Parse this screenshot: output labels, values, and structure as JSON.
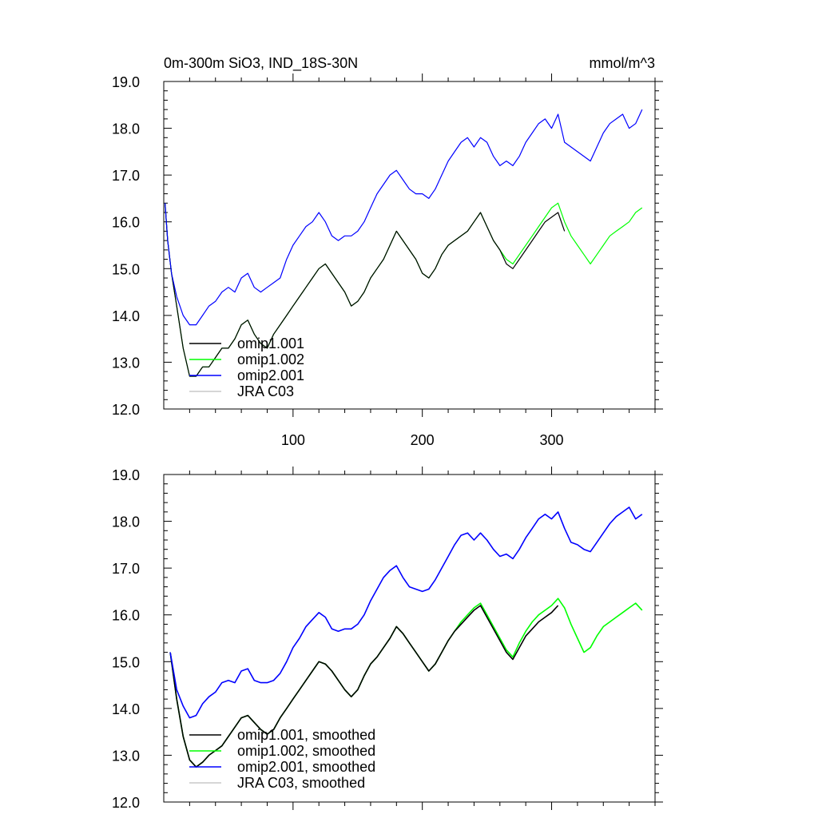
{
  "chart_data": [
    {
      "type": "line",
      "title": "0m-300m SiO3, IND_18S-30N",
      "units": "mmol/m^3",
      "xlim": [
        0,
        380
      ],
      "ylim": [
        12.0,
        19.0
      ],
      "xticks": [
        100,
        200,
        300
      ],
      "xtick_labels": [
        "100",
        "200",
        "300"
      ],
      "yticks": [
        12.0,
        13.0,
        14.0,
        15.0,
        16.0,
        17.0,
        18.0,
        19.0
      ],
      "ytick_labels": [
        "12.0",
        "13.0",
        "14.0",
        "15.0",
        "16.0",
        "17.0",
        "18.0",
        "19.0"
      ],
      "legend_position": "bottom-left",
      "series": [
        {
          "name": "omip1.001",
          "color": "#000000",
          "x": [
            1,
            3,
            6,
            10,
            15,
            20,
            25,
            30,
            35,
            40,
            45,
            50,
            55,
            60,
            65,
            70,
            75,
            80,
            85,
            90,
            95,
            100,
            105,
            110,
            115,
            120,
            125,
            130,
            135,
            140,
            145,
            150,
            155,
            160,
            165,
            170,
            175,
            180,
            185,
            190,
            195,
            200,
            205,
            210,
            215,
            220,
            225,
            230,
            235,
            240,
            245,
            250,
            255,
            260,
            265,
            270,
            275,
            280,
            285,
            290,
            295,
            300,
            305,
            310
          ],
          "y": [
            16.4,
            15.6,
            14.9,
            14.2,
            13.3,
            12.7,
            12.7,
            12.9,
            12.9,
            13.1,
            13.3,
            13.3,
            13.5,
            13.8,
            13.9,
            13.6,
            13.4,
            13.3,
            13.6,
            13.8,
            14.0,
            14.2,
            14.4,
            14.6,
            14.8,
            15.0,
            15.1,
            14.9,
            14.7,
            14.5,
            14.2,
            14.3,
            14.5,
            14.8,
            15.0,
            15.2,
            15.5,
            15.8,
            15.6,
            15.4,
            15.2,
            14.9,
            14.8,
            15.0,
            15.3,
            15.5,
            15.6,
            15.7,
            15.8,
            16.0,
            16.2,
            15.9,
            15.6,
            15.4,
            15.1,
            15.0,
            15.2,
            15.4,
            15.6,
            15.8,
            16.0,
            16.1,
            16.2,
            15.8
          ]
        },
        {
          "name": "omip1.002",
          "color": "#00ff00",
          "x": [
            1,
            3,
            6,
            10,
            15,
            20,
            25,
            30,
            35,
            40,
            45,
            50,
            55,
            60,
            65,
            70,
            75,
            80,
            85,
            90,
            95,
            100,
            105,
            110,
            115,
            120,
            125,
            130,
            135,
            140,
            145,
            150,
            155,
            160,
            165,
            170,
            175,
            180,
            185,
            190,
            195,
            200,
            205,
            210,
            215,
            220,
            225,
            230,
            235,
            240,
            245,
            250,
            255,
            260,
            265,
            270,
            275,
            280,
            285,
            290,
            295,
            300,
            305,
            310,
            315,
            320,
            325,
            330,
            335,
            340,
            345,
            350,
            355,
            360,
            365,
            370
          ],
          "y": [
            16.4,
            15.6,
            14.9,
            14.2,
            13.3,
            12.7,
            12.7,
            12.9,
            12.9,
            13.1,
            13.3,
            13.3,
            13.5,
            13.8,
            13.9,
            13.6,
            13.4,
            13.3,
            13.6,
            13.8,
            14.0,
            14.2,
            14.4,
            14.6,
            14.8,
            15.0,
            15.1,
            14.9,
            14.7,
            14.5,
            14.2,
            14.3,
            14.5,
            14.8,
            15.0,
            15.2,
            15.5,
            15.8,
            15.6,
            15.4,
            15.2,
            14.9,
            14.8,
            15.0,
            15.3,
            15.5,
            15.6,
            15.7,
            15.8,
            16.0,
            16.2,
            15.9,
            15.6,
            15.4,
            15.2,
            15.1,
            15.3,
            15.5,
            15.7,
            15.9,
            16.1,
            16.3,
            16.4,
            16.0,
            15.7,
            15.5,
            15.3,
            15.1,
            15.3,
            15.5,
            15.7,
            15.8,
            15.9,
            16.0,
            16.2,
            16.3
          ]
        },
        {
          "name": "omip2.001",
          "color": "#0000ff",
          "x": [
            1,
            3,
            6,
            10,
            15,
            20,
            25,
            30,
            35,
            40,
            45,
            50,
            55,
            60,
            65,
            70,
            75,
            80,
            85,
            90,
            95,
            100,
            105,
            110,
            115,
            120,
            125,
            130,
            135,
            140,
            145,
            150,
            155,
            160,
            165,
            170,
            175,
            180,
            185,
            190,
            195,
            200,
            205,
            210,
            215,
            220,
            225,
            230,
            235,
            240,
            245,
            250,
            255,
            260,
            265,
            270,
            275,
            280,
            285,
            290,
            295,
            300,
            305,
            310,
            315,
            320,
            325,
            330,
            335,
            340,
            345,
            350,
            355,
            360,
            365,
            370
          ],
          "y": [
            16.4,
            15.6,
            14.9,
            14.4,
            14.0,
            13.8,
            13.8,
            14.0,
            14.2,
            14.3,
            14.5,
            14.6,
            14.5,
            14.8,
            14.9,
            14.6,
            14.5,
            14.6,
            14.7,
            14.8,
            15.2,
            15.5,
            15.7,
            15.9,
            16.0,
            16.2,
            16.0,
            15.7,
            15.6,
            15.7,
            15.7,
            15.8,
            16.0,
            16.3,
            16.6,
            16.8,
            17.0,
            17.1,
            16.9,
            16.7,
            16.6,
            16.6,
            16.5,
            16.7,
            17.0,
            17.3,
            17.5,
            17.7,
            17.8,
            17.6,
            17.8,
            17.7,
            17.4,
            17.2,
            17.3,
            17.2,
            17.4,
            17.7,
            17.9,
            18.1,
            18.2,
            18.0,
            18.3,
            17.7,
            17.6,
            17.5,
            17.4,
            17.3,
            17.6,
            17.9,
            18.1,
            18.2,
            18.3,
            18.0,
            18.1,
            18.4
          ]
        },
        {
          "name": "JRA C03",
          "color": "#c8c8c8",
          "x": [],
          "y": []
        }
      ]
    },
    {
      "type": "line",
      "xlim": [
        0,
        380
      ],
      "ylim": [
        12.0,
        19.0
      ],
      "yticks": [
        12.0,
        13.0,
        14.0,
        15.0,
        16.0,
        17.0,
        18.0,
        19.0
      ],
      "ytick_labels": [
        "12.0",
        "13.0",
        "14.0",
        "15.0",
        "16.0",
        "17.0",
        "18.0",
        "19.0"
      ],
      "legend_position": "bottom-left",
      "series": [
        {
          "name": "omip1.001, smoothed",
          "color": "#000000",
          "x": [
            5,
            10,
            15,
            20,
            25,
            30,
            35,
            40,
            45,
            50,
            55,
            60,
            65,
            70,
            75,
            80,
            85,
            90,
            95,
            100,
            105,
            110,
            115,
            120,
            125,
            130,
            135,
            140,
            145,
            150,
            155,
            160,
            165,
            170,
            175,
            180,
            185,
            190,
            195,
            200,
            205,
            210,
            215,
            220,
            225,
            230,
            235,
            240,
            245,
            250,
            255,
            260,
            265,
            270,
            275,
            280,
            285,
            290,
            295,
            300,
            305
          ],
          "y": [
            15.2,
            14.2,
            13.4,
            12.9,
            12.75,
            12.85,
            13.0,
            13.1,
            13.2,
            13.4,
            13.6,
            13.8,
            13.85,
            13.7,
            13.55,
            13.45,
            13.55,
            13.8,
            14.0,
            14.2,
            14.4,
            14.6,
            14.8,
            15.0,
            14.95,
            14.8,
            14.6,
            14.4,
            14.25,
            14.4,
            14.7,
            14.95,
            15.1,
            15.3,
            15.5,
            15.75,
            15.6,
            15.4,
            15.2,
            15.0,
            14.8,
            14.95,
            15.2,
            15.45,
            15.65,
            15.8,
            15.95,
            16.1,
            16.2,
            15.95,
            15.7,
            15.45,
            15.2,
            15.05,
            15.3,
            15.55,
            15.7,
            15.85,
            15.95,
            16.05,
            16.2
          ]
        },
        {
          "name": "omip1.002, smoothed",
          "color": "#00ff00",
          "x": [
            5,
            10,
            15,
            20,
            25,
            30,
            35,
            40,
            45,
            50,
            55,
            60,
            65,
            70,
            75,
            80,
            85,
            90,
            95,
            100,
            105,
            110,
            115,
            120,
            125,
            130,
            135,
            140,
            145,
            150,
            155,
            160,
            165,
            170,
            175,
            180,
            185,
            190,
            195,
            200,
            205,
            210,
            215,
            220,
            225,
            230,
            235,
            240,
            245,
            250,
            255,
            260,
            265,
            270,
            275,
            280,
            285,
            290,
            295,
            300,
            305,
            310,
            315,
            320,
            325,
            330,
            335,
            340,
            345,
            350,
            355,
            360,
            365,
            370
          ],
          "y": [
            15.2,
            14.2,
            13.4,
            12.9,
            12.75,
            12.85,
            13.0,
            13.1,
            13.2,
            13.4,
            13.6,
            13.8,
            13.85,
            13.7,
            13.55,
            13.45,
            13.55,
            13.8,
            14.0,
            14.2,
            14.4,
            14.6,
            14.8,
            15.0,
            14.95,
            14.8,
            14.6,
            14.4,
            14.25,
            14.4,
            14.7,
            14.95,
            15.1,
            15.3,
            15.5,
            15.75,
            15.6,
            15.4,
            15.2,
            15.0,
            14.8,
            14.95,
            15.2,
            15.45,
            15.65,
            15.85,
            16.0,
            16.15,
            16.25,
            16.0,
            15.75,
            15.5,
            15.25,
            15.1,
            15.4,
            15.65,
            15.85,
            16.0,
            16.1,
            16.2,
            16.35,
            16.15,
            15.8,
            15.5,
            15.2,
            15.3,
            15.55,
            15.75,
            15.85,
            15.95,
            16.05,
            16.15,
            16.25,
            16.1
          ]
        },
        {
          "name": "omip2.001, smoothed",
          "color": "#0000ff",
          "x": [
            5,
            10,
            15,
            20,
            25,
            30,
            35,
            40,
            45,
            50,
            55,
            60,
            65,
            70,
            75,
            80,
            85,
            90,
            95,
            100,
            105,
            110,
            115,
            120,
            125,
            130,
            135,
            140,
            145,
            150,
            155,
            160,
            165,
            170,
            175,
            180,
            185,
            190,
            195,
            200,
            205,
            210,
            215,
            220,
            225,
            230,
            235,
            240,
            245,
            250,
            255,
            260,
            265,
            270,
            275,
            280,
            285,
            290,
            295,
            300,
            305,
            310,
            315,
            320,
            325,
            330,
            335,
            340,
            345,
            350,
            355,
            360,
            365,
            370
          ],
          "y": [
            15.2,
            14.4,
            14.05,
            13.8,
            13.85,
            14.1,
            14.25,
            14.35,
            14.55,
            14.6,
            14.55,
            14.8,
            14.85,
            14.6,
            14.55,
            14.55,
            14.6,
            14.75,
            15.0,
            15.3,
            15.5,
            15.75,
            15.9,
            16.05,
            15.95,
            15.7,
            15.65,
            15.7,
            15.7,
            15.8,
            16.0,
            16.3,
            16.55,
            16.8,
            16.95,
            17.05,
            16.8,
            16.6,
            16.55,
            16.5,
            16.55,
            16.75,
            17.0,
            17.25,
            17.5,
            17.7,
            17.75,
            17.6,
            17.75,
            17.6,
            17.4,
            17.25,
            17.3,
            17.2,
            17.4,
            17.65,
            17.85,
            18.05,
            18.15,
            18.05,
            18.2,
            17.85,
            17.55,
            17.5,
            17.4,
            17.35,
            17.55,
            17.75,
            17.95,
            18.1,
            18.2,
            18.3,
            18.05,
            18.15
          ]
        },
        {
          "name": "JRA C03, smoothed",
          "color": "#c8c8c8",
          "x": [],
          "y": []
        }
      ]
    }
  ]
}
